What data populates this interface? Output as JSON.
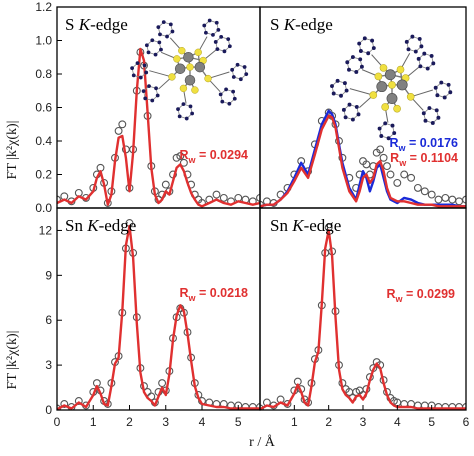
{
  "figure": {
    "ylabel": "FT |k²χ(k)|",
    "xlabel": "r / Å"
  },
  "chart_data": [
    {
      "type": "line",
      "panel": "top-left",
      "title": "S  K-edge",
      "xlim": [
        0,
        5.6
      ],
      "ylim": [
        0,
        1.2
      ],
      "xticks": [],
      "yticks": [
        "0.0",
        "0.2",
        "0.4",
        "0.6",
        "0.8",
        "1.0",
        "1.2"
      ],
      "ytick_values": [
        0,
        0.2,
        0.4,
        0.6,
        0.8,
        1.0,
        1.2
      ],
      "annotations": [
        {
          "text": "R_w = 0.0294",
          "sub": "w",
          "value": "0.0294",
          "color": "#e03030"
        }
      ],
      "series": [
        {
          "style": "circles",
          "color": "#555555",
          "x": [
            0.0,
            0.2,
            0.4,
            0.6,
            0.8,
            1.0,
            1.1,
            1.2,
            1.3,
            1.4,
            1.5,
            1.6,
            1.7,
            1.8,
            1.9,
            2.0,
            2.1,
            2.2,
            2.3,
            2.4,
            2.5,
            2.6,
            2.7,
            2.8,
            2.9,
            3.0,
            3.1,
            3.2,
            3.3,
            3.4,
            3.5,
            3.6,
            3.7,
            3.8,
            3.9,
            4.0,
            4.2,
            4.4,
            4.6,
            4.8,
            5.0,
            5.2,
            5.4,
            5.6
          ],
          "y": [
            0.05,
            0.07,
            0.04,
            0.09,
            0.06,
            0.12,
            0.2,
            0.24,
            0.15,
            0.03,
            0.1,
            0.3,
            0.46,
            0.5,
            0.35,
            0.12,
            0.35,
            0.7,
            0.93,
            0.85,
            0.55,
            0.25,
            0.1,
            0.05,
            0.08,
            0.14,
            0.1,
            0.2,
            0.3,
            0.31,
            0.27,
            0.2,
            0.14,
            0.08,
            0.05,
            0.03,
            0.05,
            0.08,
            0.06,
            0.04,
            0.06,
            0.05,
            0.04,
            0.06
          ]
        },
        {
          "style": "line",
          "color": "#e03030",
          "x": [
            0.0,
            0.2,
            0.4,
            0.6,
            0.8,
            1.0,
            1.1,
            1.2,
            1.3,
            1.4,
            1.5,
            1.6,
            1.7,
            1.8,
            1.9,
            2.0,
            2.1,
            2.2,
            2.3,
            2.4,
            2.5,
            2.6,
            2.7,
            2.8,
            2.9,
            3.0,
            3.1,
            3.2,
            3.3,
            3.4,
            3.5,
            3.6,
            3.7,
            3.8,
            3.9,
            4.0,
            4.2,
            4.4,
            4.6,
            4.8,
            5.0,
            5.2,
            5.4,
            5.6
          ],
          "y": [
            0.03,
            0.05,
            0.03,
            0.07,
            0.05,
            0.1,
            0.18,
            0.22,
            0.14,
            0.02,
            0.08,
            0.28,
            0.42,
            0.43,
            0.3,
            0.1,
            0.33,
            0.7,
            0.95,
            0.88,
            0.57,
            0.24,
            0.08,
            0.03,
            0.05,
            0.1,
            0.08,
            0.16,
            0.24,
            0.26,
            0.22,
            0.15,
            0.09,
            0.05,
            0.02,
            0.01,
            0.03,
            0.05,
            0.03,
            0.02,
            0.04,
            0.03,
            0.02,
            0.03
          ]
        }
      ]
    },
    {
      "type": "line",
      "panel": "top-right",
      "title": "S  K-edge",
      "xlim": [
        0,
        6
      ],
      "ylim": [
        0,
        1.2
      ],
      "xticks": [],
      "yticks": [],
      "annotations": [
        {
          "text": "R_w = 0.0176",
          "value": "0.0176",
          "color": "#1a2ad8"
        },
        {
          "text": "R_w = 0.1104",
          "value": "0.1104",
          "color": "#e03030"
        }
      ],
      "series": [
        {
          "style": "circles",
          "color": "#555555",
          "x": [
            0.0,
            0.2,
            0.4,
            0.6,
            0.8,
            1.0,
            1.2,
            1.4,
            1.6,
            1.8,
            2.0,
            2.1,
            2.2,
            2.3,
            2.4,
            2.6,
            2.8,
            2.9,
            3.0,
            3.1,
            3.2,
            3.3,
            3.4,
            3.5,
            3.6,
            3.7,
            3.8,
            4.0,
            4.2,
            4.4,
            4.6,
            4.8,
            5.0,
            5.2,
            5.4,
            5.6,
            5.8,
            6.0
          ],
          "y": [
            0.02,
            0.04,
            0.03,
            0.08,
            0.12,
            0.2,
            0.28,
            0.22,
            0.38,
            0.52,
            0.57,
            0.55,
            0.5,
            0.4,
            0.3,
            0.18,
            0.12,
            0.2,
            0.28,
            0.26,
            0.2,
            0.25,
            0.33,
            0.35,
            0.3,
            0.25,
            0.2,
            0.15,
            0.2,
            0.18,
            0.12,
            0.1,
            0.08,
            0.05,
            0.06,
            0.05,
            0.04,
            0.05
          ]
        },
        {
          "style": "line",
          "color": "#1a2ad8",
          "x": [
            0.0,
            0.2,
            0.4,
            0.6,
            0.8,
            1.0,
            1.2,
            1.4,
            1.6,
            1.8,
            2.0,
            2.1,
            2.2,
            2.3,
            2.4,
            2.6,
            2.8,
            2.9,
            3.0,
            3.1,
            3.2,
            3.3,
            3.4,
            3.5,
            3.6,
            3.7,
            3.8,
            4.0,
            4.2,
            4.4,
            4.6,
            4.8,
            5.0,
            5.2,
            5.4,
            5.6,
            5.8,
            6.0
          ],
          "y": [
            0.01,
            0.02,
            0.02,
            0.05,
            0.1,
            0.18,
            0.27,
            0.2,
            0.35,
            0.5,
            0.58,
            0.56,
            0.5,
            0.38,
            0.27,
            0.12,
            0.05,
            0.14,
            0.22,
            0.18,
            0.1,
            0.16,
            0.24,
            0.26,
            0.18,
            0.1,
            0.05,
            0.03,
            0.06,
            0.05,
            0.03,
            0.02,
            0.02,
            0.02,
            0.02,
            0.02,
            0.01,
            0.01
          ]
        },
        {
          "style": "line",
          "color": "#e03030",
          "x": [
            0.0,
            0.2,
            0.4,
            0.6,
            0.8,
            1.0,
            1.2,
            1.4,
            1.6,
            1.8,
            2.0,
            2.1,
            2.2,
            2.3,
            2.4,
            2.6,
            2.8,
            2.9,
            3.0,
            3.1,
            3.2,
            3.3,
            3.4,
            3.5,
            3.6,
            3.7,
            3.8,
            4.0,
            4.2,
            4.4,
            4.6,
            4.8,
            5.0,
            5.2,
            5.4,
            5.6,
            5.8,
            6.0
          ],
          "y": [
            0.01,
            0.02,
            0.02,
            0.05,
            0.09,
            0.16,
            0.24,
            0.18,
            0.32,
            0.47,
            0.55,
            0.54,
            0.48,
            0.36,
            0.24,
            0.1,
            0.04,
            0.1,
            0.18,
            0.2,
            0.15,
            0.18,
            0.26,
            0.28,
            0.22,
            0.12,
            0.06,
            0.04,
            0.04,
            0.03,
            0.02,
            0.02,
            0.02,
            0.01,
            0.01,
            0.01,
            0.01,
            0.01
          ]
        }
      ]
    },
    {
      "type": "line",
      "panel": "bottom-left",
      "title": "Sn K-edge",
      "xlim": [
        0,
        5.6
      ],
      "ylim": [
        0,
        13.5
      ],
      "xticks": [
        "0",
        "1",
        "2",
        "3",
        "4",
        "5"
      ],
      "xtick_values": [
        0,
        1,
        2,
        3,
        4,
        5
      ],
      "yticks": [
        "0",
        "3",
        "6",
        "9",
        "12"
      ],
      "ytick_values": [
        0,
        3,
        6,
        9,
        12
      ],
      "annotations": [
        {
          "text": "R_w = 0.0218",
          "value": "0.0218",
          "color": "#e03030"
        }
      ],
      "series": [
        {
          "style": "circles",
          "color": "#555555",
          "x": [
            0.0,
            0.2,
            0.4,
            0.6,
            0.8,
            1.0,
            1.1,
            1.2,
            1.3,
            1.4,
            1.5,
            1.6,
            1.7,
            1.8,
            1.9,
            2.0,
            2.1,
            2.2,
            2.3,
            2.4,
            2.5,
            2.6,
            2.7,
            2.8,
            2.9,
            3.0,
            3.1,
            3.2,
            3.3,
            3.4,
            3.5,
            3.6,
            3.7,
            3.8,
            3.9,
            4.0,
            4.2,
            4.4,
            4.6,
            4.8,
            5.0,
            5.2,
            5.4,
            5.6
          ],
          "y": [
            0.1,
            0.4,
            0.2,
            0.6,
            0.3,
            1.2,
            1.8,
            1.3,
            0.6,
            0.4,
            1.8,
            3.2,
            3.6,
            6.5,
            10.8,
            12.5,
            10.5,
            6.2,
            2.8,
            1.6,
            1.2,
            0.9,
            0.5,
            1.2,
            1.8,
            1.3,
            2.6,
            4.8,
            6.2,
            6.8,
            6.5,
            5.2,
            3.5,
            1.8,
            1.0,
            0.6,
            0.5,
            0.4,
            0.4,
            0.3,
            0.3,
            0.2,
            0.2,
            0.2
          ]
        },
        {
          "style": "line",
          "color": "#e03030",
          "x": [
            0.0,
            0.2,
            0.4,
            0.6,
            0.8,
            1.0,
            1.1,
            1.2,
            1.3,
            1.4,
            1.5,
            1.6,
            1.7,
            1.8,
            1.9,
            2.0,
            2.1,
            2.2,
            2.3,
            2.4,
            2.5,
            2.6,
            2.7,
            2.8,
            2.9,
            3.0,
            3.1,
            3.2,
            3.3,
            3.4,
            3.5,
            3.6,
            3.7,
            3.8,
            3.9,
            4.0,
            4.2,
            4.4,
            4.6,
            4.8,
            5.0,
            5.2,
            5.4,
            5.6
          ],
          "y": [
            0.05,
            0.3,
            0.1,
            0.5,
            0.2,
            1.0,
            1.6,
            1.1,
            0.4,
            0.3,
            1.6,
            3.1,
            3.5,
            6.6,
            11.0,
            12.3,
            10.2,
            5.8,
            2.5,
            1.2,
            0.8,
            0.6,
            0.3,
            0.9,
            1.5,
            1.0,
            2.4,
            4.7,
            6.3,
            7.0,
            6.6,
            5.1,
            3.3,
            1.6,
            0.8,
            0.4,
            0.3,
            0.2,
            0.2,
            0.1,
            0.1,
            0.1,
            0.1,
            0.1
          ]
        }
      ]
    },
    {
      "type": "line",
      "panel": "bottom-right",
      "title": "Sn K-edge",
      "xlim": [
        0,
        6
      ],
      "ylim": [
        0,
        13.5
      ],
      "xticks": [
        "1",
        "2",
        "3",
        "4",
        "5",
        "6"
      ],
      "xtick_values": [
        1,
        2,
        3,
        4,
        5,
        6
      ],
      "yticks": [],
      "annotations": [
        {
          "text": "R_w = 0.0299",
          "value": "0.0299",
          "color": "#e03030"
        }
      ],
      "series": [
        {
          "style": "circles",
          "color": "#555555",
          "x": [
            0.0,
            0.2,
            0.4,
            0.6,
            0.8,
            1.0,
            1.1,
            1.2,
            1.3,
            1.4,
            1.5,
            1.6,
            1.7,
            1.8,
            1.9,
            2.0,
            2.1,
            2.2,
            2.3,
            2.4,
            2.5,
            2.6,
            2.7,
            2.8,
            2.9,
            3.0,
            3.1,
            3.2,
            3.3,
            3.4,
            3.5,
            3.6,
            3.7,
            3.8,
            3.9,
            4.0,
            4.2,
            4.4,
            4.6,
            4.8,
            5.0,
            5.2,
            5.4,
            5.6,
            5.8,
            6.0
          ],
          "y": [
            0.1,
            0.5,
            0.3,
            0.7,
            0.4,
            1.3,
            1.9,
            1.4,
            0.7,
            0.5,
            1.8,
            3.4,
            4.0,
            7.0,
            10.5,
            12.2,
            10.6,
            6.6,
            3.0,
            1.8,
            1.4,
            1.2,
            0.8,
            1.2,
            1.3,
            1.0,
            1.4,
            2.2,
            2.8,
            3.2,
            3.0,
            2.0,
            1.2,
            0.8,
            0.6,
            0.5,
            0.4,
            0.4,
            0.3,
            0.3,
            0.3,
            0.2,
            0.2,
            0.2,
            0.2,
            0.2
          ]
        },
        {
          "style": "line",
          "color": "#e03030",
          "x": [
            0.0,
            0.2,
            0.4,
            0.6,
            0.8,
            1.0,
            1.1,
            1.2,
            1.3,
            1.4,
            1.5,
            1.6,
            1.7,
            1.8,
            1.9,
            2.0,
            2.1,
            2.2,
            2.3,
            2.4,
            2.5,
            2.6,
            2.7,
            2.8,
            2.9,
            3.0,
            3.1,
            3.2,
            3.3,
            3.4,
            3.5,
            3.6,
            3.7,
            3.8,
            3.9,
            4.0,
            4.2,
            4.4,
            4.6,
            4.8,
            5.0,
            5.2,
            5.4,
            5.6,
            5.8,
            6.0
          ],
          "y": [
            0.05,
            0.3,
            0.2,
            0.5,
            0.3,
            1.1,
            1.7,
            1.2,
            0.5,
            0.3,
            1.6,
            3.2,
            3.9,
            7.1,
            10.8,
            12.0,
            10.3,
            6.2,
            2.7,
            1.4,
            1.0,
            0.8,
            0.5,
            0.9,
            1.0,
            0.7,
            1.1,
            2.0,
            2.7,
            3.1,
            2.8,
            1.8,
            1.0,
            0.5,
            0.3,
            0.2,
            0.2,
            0.2,
            0.1,
            0.1,
            0.1,
            0.1,
            0.1,
            0.1,
            0.1,
            0.1
          ]
        }
      ]
    }
  ],
  "colors": {
    "data_points": "#555555",
    "fit_red": "#e03030",
    "fit_blue": "#1a2ad8",
    "frame": "#000000"
  },
  "structure_insets": [
    {
      "panel": "top-left",
      "atom_colors": {
        "Sn": "#808080",
        "S": "#f0e040",
        "N_C": "#1a1a5a"
      }
    },
    {
      "panel": "top-right",
      "atom_colors": {
        "Sn": "#808080",
        "S": "#f0e040",
        "N_C": "#1a1a5a"
      }
    }
  ]
}
